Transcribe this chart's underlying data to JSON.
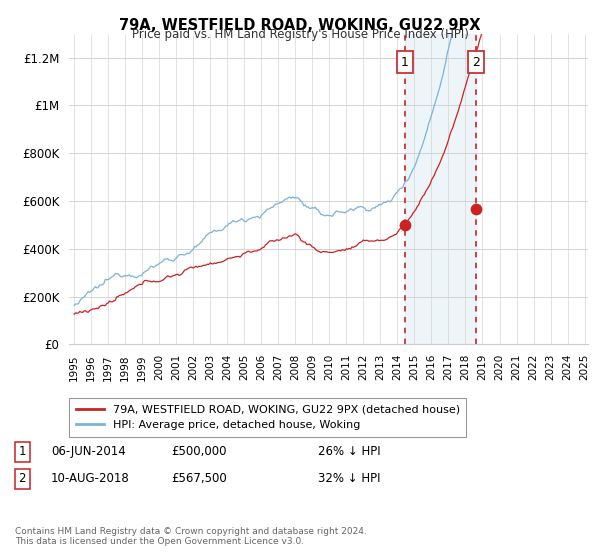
{
  "title": "79A, WESTFIELD ROAD, WOKING, GU22 9PX",
  "subtitle": "Price paid vs. HM Land Registry's House Price Index (HPI)",
  "x_start_year": 1995,
  "x_end_year": 2025,
  "y_min": 0,
  "y_max": 1300000,
  "y_ticks": [
    0,
    200000,
    400000,
    600000,
    800000,
    1000000,
    1200000
  ],
  "y_tick_labels": [
    "£0",
    "£200K",
    "£400K",
    "£600K",
    "£800K",
    "£1M",
    "£1.2M"
  ],
  "sale1_date_num": 2014.44,
  "sale1_price": 500000,
  "sale1_label": "1",
  "sale1_pct": "26% ↓ HPI",
  "sale1_date_str": "06-JUN-2014",
  "sale2_date_num": 2018.61,
  "sale2_price": 567500,
  "sale2_label": "2",
  "sale2_pct": "32% ↓ HPI",
  "sale2_date_str": "10-AUG-2018",
  "hpi_color": "#7ab3d8",
  "price_color": "#cc2222",
  "vline_color": "#cc3333",
  "background_color": "#ffffff",
  "legend1_label": "79A, WESTFIELD ROAD, WOKING, GU22 9PX (detached house)",
  "legend2_label": "HPI: Average price, detached house, Woking",
  "footer": "Contains HM Land Registry data © Crown copyright and database right 2024.\nThis data is licensed under the Open Government Licence v3.0."
}
